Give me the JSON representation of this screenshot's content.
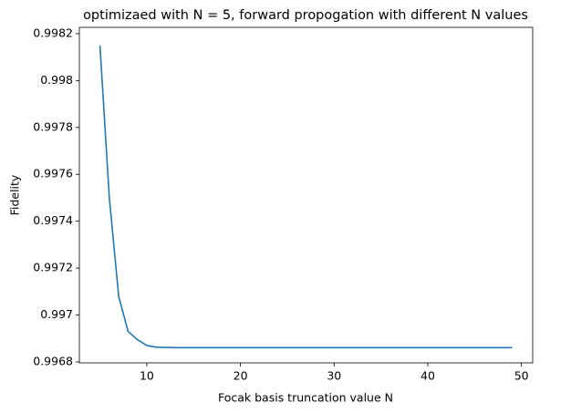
{
  "chart_data": {
    "type": "line",
    "title": "optimizaed with N = 5, forward propogation with different N values",
    "x_label": "Focak basis truncation value N",
    "y_label": "Fidelity",
    "x": [
      5,
      6,
      7,
      8,
      9,
      10,
      11,
      12,
      13,
      14,
      15,
      16,
      17,
      18,
      19,
      20,
      21,
      22,
      23,
      24,
      25,
      26,
      27,
      28,
      29,
      30,
      31,
      32,
      33,
      34,
      35,
      36,
      37,
      38,
      39,
      40,
      41,
      42,
      43,
      44,
      45,
      46,
      47,
      48,
      49
    ],
    "series": [
      {
        "name": "Fidelity",
        "color": "#1f77b4",
        "values": [
          0.99815,
          0.9975,
          0.99708,
          0.99693,
          0.996895,
          0.99687,
          0.996863,
          0.996862,
          0.996861,
          0.996861,
          0.996861,
          0.996861,
          0.996861,
          0.996861,
          0.996861,
          0.996861,
          0.996861,
          0.996861,
          0.996861,
          0.996861,
          0.996861,
          0.996861,
          0.996861,
          0.996861,
          0.996861,
          0.996861,
          0.996861,
          0.996861,
          0.996861,
          0.996861,
          0.996861,
          0.996861,
          0.996861,
          0.996861,
          0.996861,
          0.996861,
          0.996861,
          0.996861,
          0.996861,
          0.996861,
          0.996861,
          0.996861,
          0.996861,
          0.996861,
          0.996861
        ]
      }
    ],
    "xlim": [
      2.8,
      51.2
    ],
    "ylim": [
      0.996796,
      0.998227
    ],
    "xticks": [
      10,
      20,
      30,
      40,
      50
    ],
    "yticks": [
      0.9968,
      0.997,
      0.9972,
      0.9974,
      0.9976,
      0.9978,
      0.998,
      0.9982
    ],
    "grid": false
  }
}
